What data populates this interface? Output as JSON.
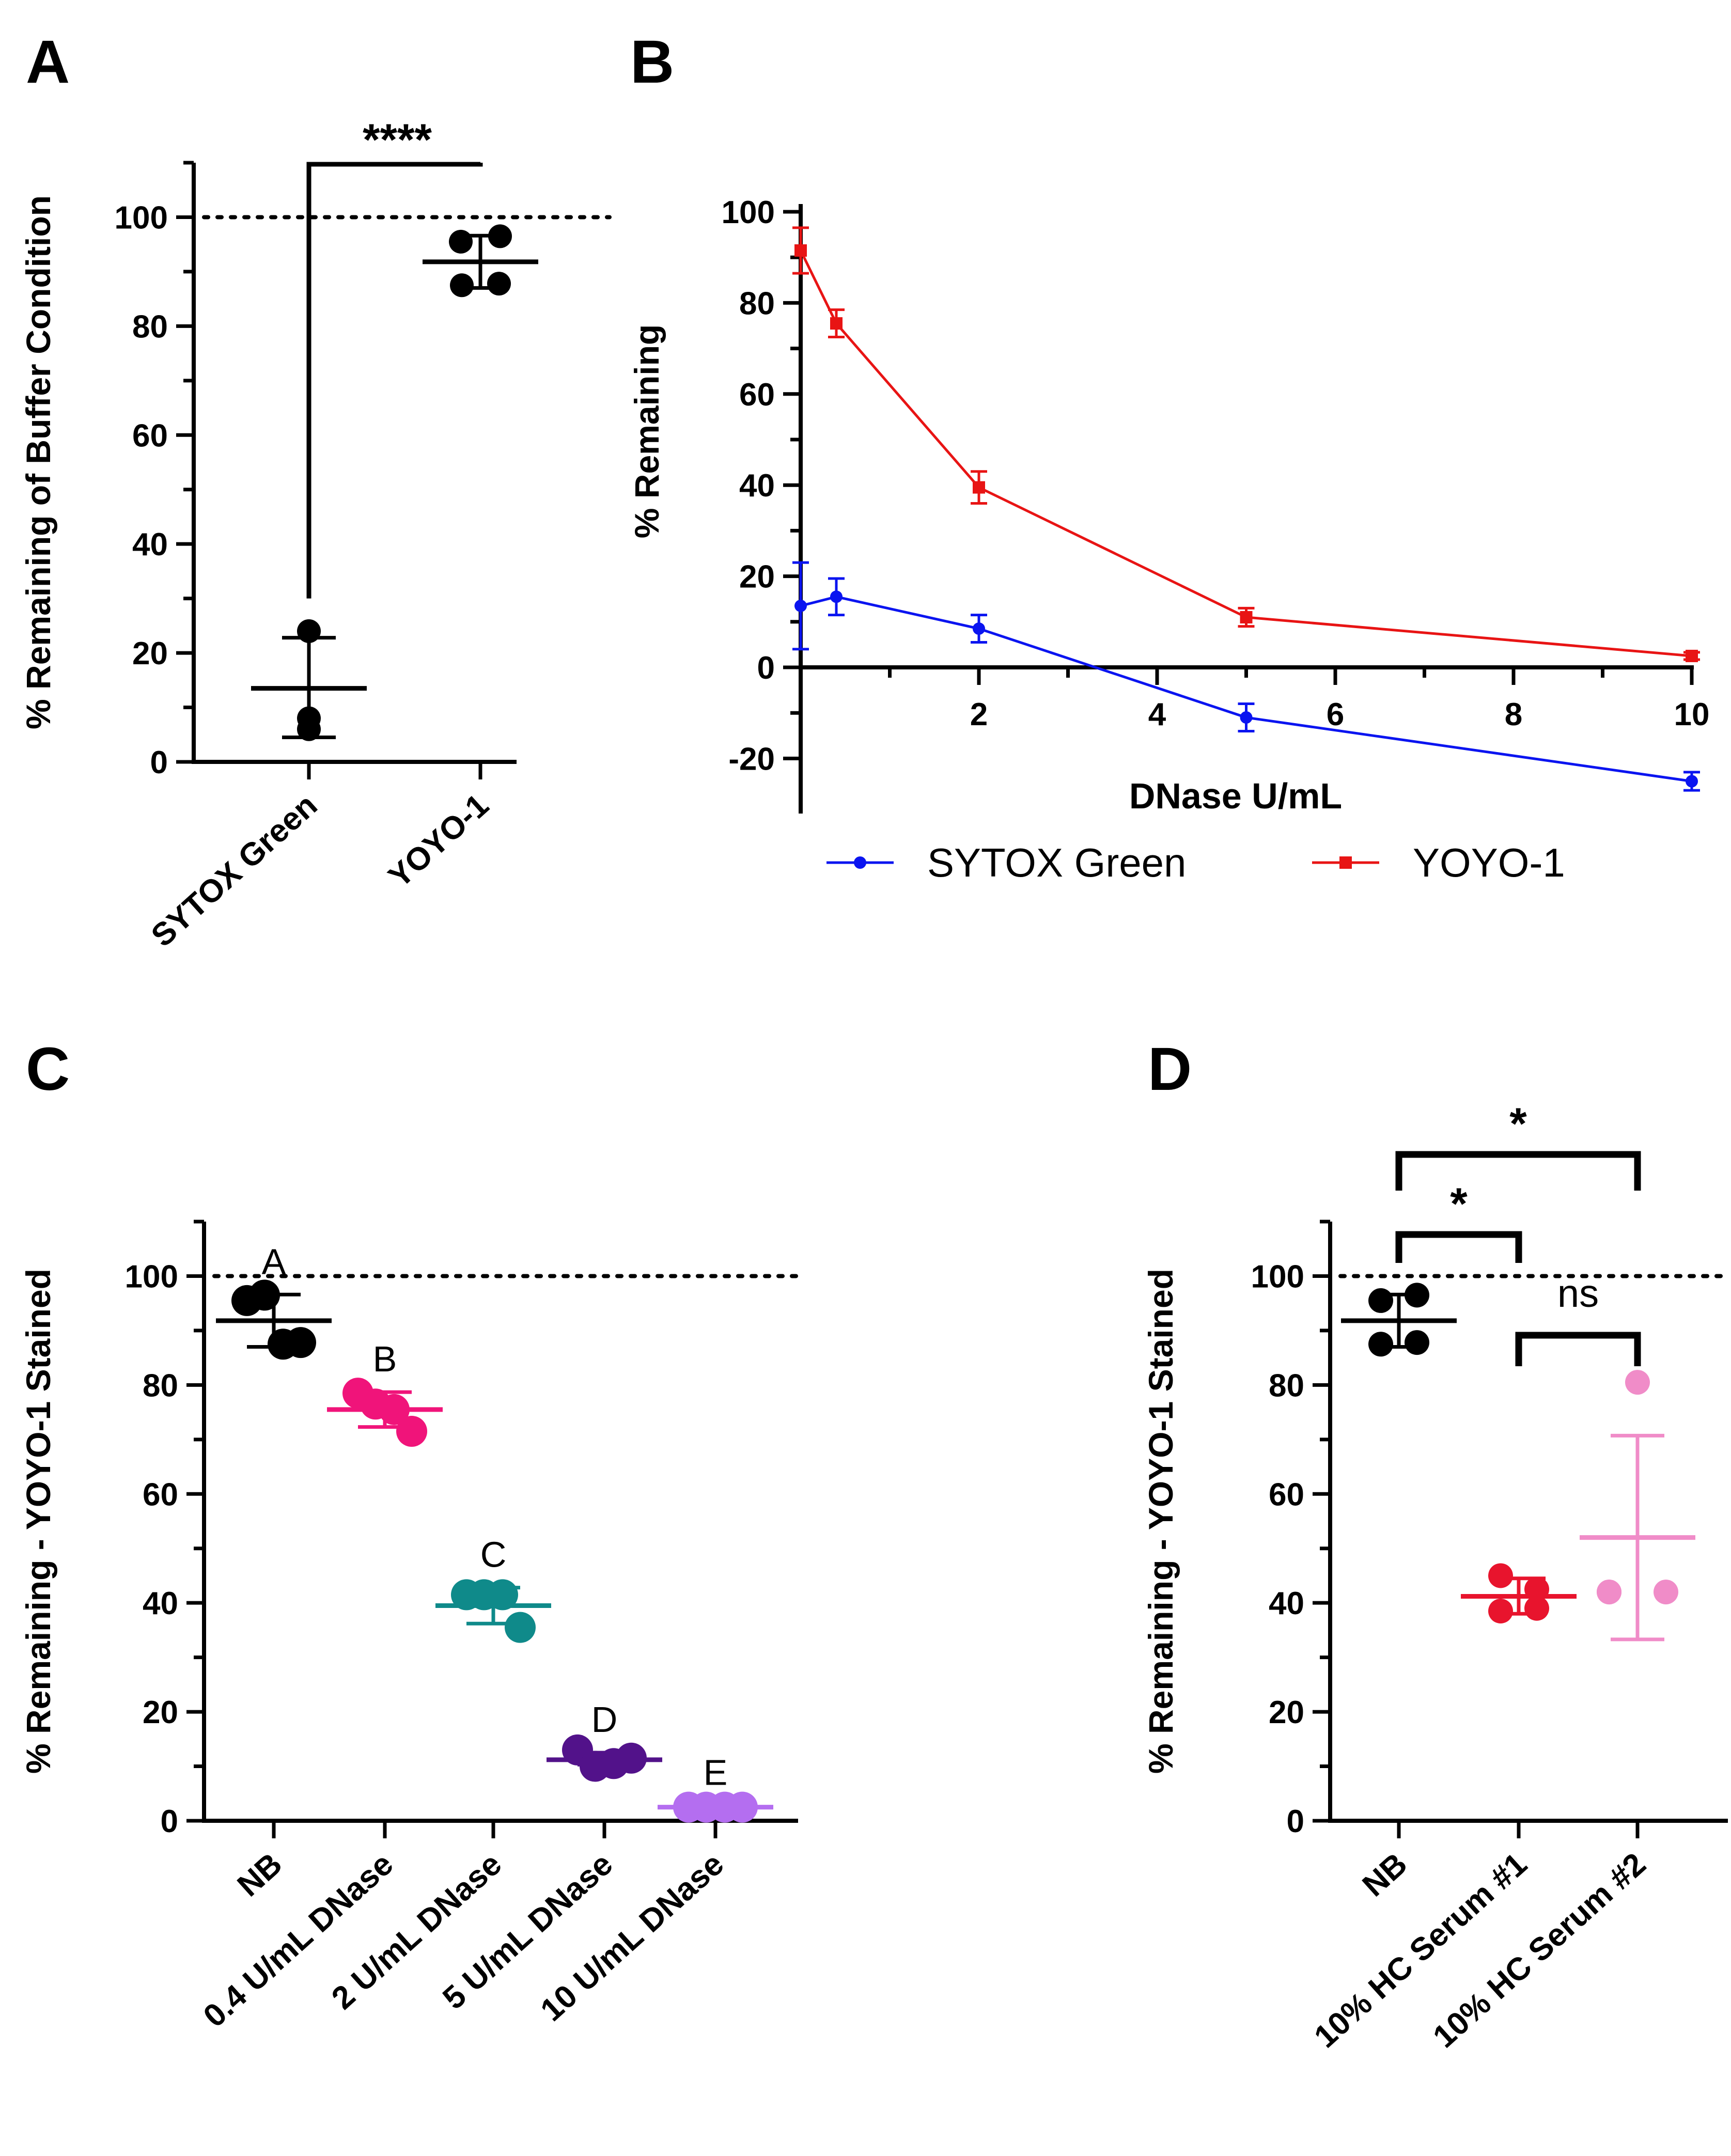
{
  "chart_data": [
    {
      "type": "scatter",
      "panel": "A",
      "ylabel": "% Remaining of Buffer Condition",
      "ylim": [
        0,
        110
      ],
      "yticks": [
        "0",
        "20",
        "40",
        "60",
        "80",
        "100"
      ],
      "reference_line": 100,
      "categories": [
        "SYTOX Green",
        "YOYO-1"
      ],
      "groups": [
        {
          "name": "SYTOX Green",
          "color": "#000000",
          "points": [
            24,
            8,
            6
          ],
          "mean": 13.5,
          "sd_low": 4.5,
          "sd_high": 22.8
        },
        {
          "name": "YOYO-1",
          "color": "#000000",
          "points": [
            95.5,
            96.5,
            87.5,
            87.8
          ],
          "mean": 91.8,
          "sd_low": 87.0,
          "sd_high": 96.6
        }
      ],
      "comparisons": [
        {
          "from": 0,
          "to": 1,
          "label": "****"
        }
      ]
    },
    {
      "type": "line",
      "panel": "B",
      "xlabel": "DNase U/mL",
      "ylabel": "% Remaining",
      "xlim": [
        0,
        10
      ],
      "ylim": [
        -28,
        100
      ],
      "xticks": [
        "2",
        "4",
        "6",
        "8",
        "10"
      ],
      "yticks": [
        "-20",
        "0",
        "20",
        "40",
        "60",
        "80",
        "100"
      ],
      "series": [
        {
          "name": "SYTOX Green",
          "color": "#0a14f0",
          "marker": "circle",
          "x": [
            0,
            0.4,
            2,
            5,
            10
          ],
          "y": [
            13.5,
            15.5,
            8.5,
            -11,
            -25
          ],
          "err": [
            9.5,
            4,
            3,
            3,
            2
          ]
        },
        {
          "name": "YOYO-1",
          "color": "#e81414",
          "marker": "square",
          "x": [
            0,
            0.4,
            2,
            5,
            10
          ],
          "y": [
            91.5,
            75.5,
            39.5,
            11,
            2.5
          ],
          "err": [
            5,
            3,
            3.5,
            2,
            0.8
          ]
        }
      ]
    },
    {
      "type": "scatter",
      "panel": "C",
      "ylabel": "% Remaining - YOYO-1 Stained",
      "ylim": [
        0,
        110
      ],
      "yticks": [
        "0",
        "20",
        "40",
        "60",
        "80",
        "100"
      ],
      "reference_line": 100,
      "categories": [
        "NB",
        "0.4 U/mL DNase",
        "2 U/mL DNase",
        "5 U/mL DNase",
        "10 U/mL DNase"
      ],
      "groups": [
        {
          "name": "NB",
          "color": "#000000",
          "letter": "A",
          "points": [
            95.5,
            96.5,
            87.5,
            87.8
          ],
          "mean": 91.8,
          "sd_low": 87.0,
          "sd_high": 96.6
        },
        {
          "name": "0.4 U/mL DNase",
          "color": "#f0147a",
          "letter": "B",
          "points": [
            78.5,
            76.5,
            75.5,
            71.5
          ],
          "mean": 75.5,
          "sd_low": 72.3,
          "sd_high": 78.7
        },
        {
          "name": "2 U/mL DNase",
          "color": "#0f8a8a",
          "letter": "C",
          "points": [
            41.5,
            41.5,
            41.5,
            35.5
          ],
          "mean": 39.5,
          "sd_low": 36.2,
          "sd_high": 42.8
        },
        {
          "name": "5 U/mL DNase",
          "color": "#52128a",
          "letter": "D",
          "points": [
            13,
            10,
            10.5,
            11.5
          ],
          "mean": 11.2,
          "sd_low": 10.3,
          "sd_high": 12.5
        },
        {
          "name": "10 U/mL DNase",
          "color": "#b46ef0",
          "letter": "E",
          "points": [
            2.5,
            2.5,
            2.5,
            2.5
          ],
          "mean": 2.5,
          "sd_low": 2.2,
          "sd_high": 2.8
        }
      ]
    },
    {
      "type": "scatter",
      "panel": "D",
      "ylabel": "% Remaining - YOYO-1 Stained",
      "ylim": [
        0,
        110
      ],
      "yticks": [
        "0",
        "20",
        "40",
        "60",
        "80",
        "100"
      ],
      "reference_line": 100,
      "categories": [
        "NB",
        "10% HC Serum #1",
        "10% HC Serum #2"
      ],
      "groups": [
        {
          "name": "NB",
          "color": "#000000",
          "points": [
            95.5,
            96.5,
            87.5,
            87.8
          ],
          "mean": 91.8,
          "sd_low": 87.0,
          "sd_high": 96.6
        },
        {
          "name": "10% HC Serum #1",
          "color": "#e8142d",
          "points": [
            45,
            42.5,
            38.5,
            39
          ],
          "mean": 41.2,
          "sd_low": 38.0,
          "sd_high": 44.5
        },
        {
          "name": "10% HC Serum #2",
          "color": "#f08cc8",
          "points": [
            80.5,
            42,
            42,
            42
          ],
          "mean": 52,
          "sd_low": 33.3,
          "sd_high": 70.7
        }
      ],
      "comparisons": [
        {
          "from": 0,
          "to": 1,
          "label": "*"
        },
        {
          "from": 0,
          "to": 2,
          "label": "*"
        },
        {
          "from": 1,
          "to": 2,
          "label": "ns"
        }
      ]
    }
  ]
}
